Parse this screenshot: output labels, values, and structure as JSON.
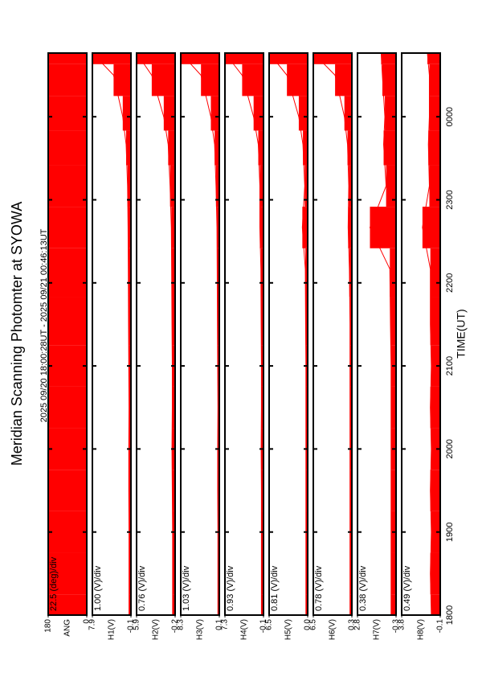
{
  "chart_data": {
    "type": "stacked-panels",
    "title": "Meridian Scanning Photomter at SYOWA",
    "subtitle": "2025 09/20 18:00:28UT - 2025 09/21 00:46:13UT",
    "xlabel": "TIME(UT)",
    "x": [
      0,
      30,
      60,
      90,
      120,
      150,
      180,
      210,
      250,
      280,
      310,
      340,
      360,
      390,
      406
    ],
    "xlim": [
      0,
      406
    ],
    "xticks": [
      {
        "value": 0,
        "label": "1800"
      },
      {
        "value": 60,
        "label": "1900"
      },
      {
        "value": 120,
        "label": "2000"
      },
      {
        "value": 180,
        "label": "2100"
      },
      {
        "value": 240,
        "label": "2200"
      },
      {
        "value": 300,
        "label": "2300"
      },
      {
        "value": 360,
        "label": "0000"
      }
    ],
    "color": "#ff0000",
    "panels": [
      {
        "ylabel": "ANG",
        "scale": "22.5 (deg)/div",
        "ylim": [
          0,
          180
        ],
        "yticks": [
          180,
          0
        ],
        "values": [
          180,
          180,
          180,
          180,
          180,
          180,
          180,
          180,
          180,
          180,
          180,
          180,
          180,
          180,
          180
        ]
      },
      {
        "ylabel": "H1(V)",
        "scale": "1.00 (V)/div",
        "ylim": [
          -0.1,
          7.9
        ],
        "yticks": [
          7.9,
          -0.1
        ],
        "values": [
          0.3,
          0.3,
          0.3,
          0.35,
          0.35,
          0.3,
          0.35,
          0.4,
          0.45,
          0.5,
          0.6,
          0.9,
          1.6,
          3.5,
          7.9
        ]
      },
      {
        "ylabel": "H2(V)",
        "scale": "0.76 (V)/div",
        "ylim": [
          -0.2,
          5.9
        ],
        "yticks": [
          5.9,
          -0.2
        ],
        "values": [
          0.2,
          0.2,
          0.2,
          0.25,
          0.3,
          0.25,
          0.25,
          0.3,
          0.35,
          0.4,
          0.6,
          0.9,
          1.6,
          3.5,
          5.9
        ]
      },
      {
        "ylabel": "H3(V)",
        "scale": "1.03 (V)/div",
        "ylim": [
          0.1,
          8.3
        ],
        "yticks": [
          8.3,
          0.1
        ],
        "values": [
          0.4,
          0.4,
          0.4,
          0.45,
          0.45,
          0.4,
          0.45,
          0.5,
          0.55,
          0.6,
          0.8,
          1.1,
          1.9,
          4.0,
          8.3
        ]
      },
      {
        "ylabel": "H4(V)",
        "scale": "0.93 (V)/div",
        "ylim": [
          -0.1,
          7.3
        ],
        "yticks": [
          7.3,
          -0.1
        ],
        "values": [
          0.3,
          0.3,
          0.3,
          0.3,
          0.35,
          0.3,
          0.3,
          0.35,
          0.4,
          0.6,
          0.6,
          0.9,
          1.8,
          4.0,
          7.3
        ]
      },
      {
        "ylabel": "H5(V)",
        "scale": "0.81 (V)/div",
        "ylim": [
          0,
          6.5
        ],
        "yticks": [
          6.5,
          {
            "value": 0,
            "label": "0.0"
          }
        ],
        "values": [
          0.3,
          0.3,
          0.3,
          0.3,
          0.3,
          0.3,
          0.3,
          0.35,
          0.4,
          0.9,
          0.5,
          0.8,
          1.5,
          3.5,
          6.5
        ]
      },
      {
        "ylabel": "H6(V)",
        "scale": "0.78 (V)/div",
        "ylim": [
          0.3,
          6.5
        ],
        "yticks": [
          6.5,
          0.3
        ],
        "values": [
          0.6,
          0.6,
          0.6,
          0.6,
          0.6,
          0.6,
          0.6,
          0.6,
          0.7,
          0.9,
          0.8,
          1.0,
          1.5,
          3.0,
          6.5
        ]
      },
      {
        "ylabel": "H7(V)",
        "scale": "0.38 (V)/div",
        "ylim": [
          -0.3,
          2.8
        ],
        "yticks": [
          2.8,
          -0.3
        ],
        "values": [
          0.1,
          0.1,
          0.1,
          0.1,
          0.1,
          0.1,
          0.1,
          0.15,
          0.2,
          1.8,
          0.5,
          0.7,
          0.6,
          0.8,
          0.9
        ]
      },
      {
        "ylabel": "H8(V)",
        "scale": "0.49 (V)/div",
        "ylim": [
          -0.1,
          3.8
        ],
        "yticks": [
          3.8,
          -0.1
        ],
        "values": [
          0.8,
          0.9,
          0.8,
          0.9,
          0.8,
          0.9,
          0.8,
          0.9,
          0.9,
          1.7,
          1.0,
          1.1,
          1.0,
          1.0,
          1.2
        ]
      }
    ]
  }
}
